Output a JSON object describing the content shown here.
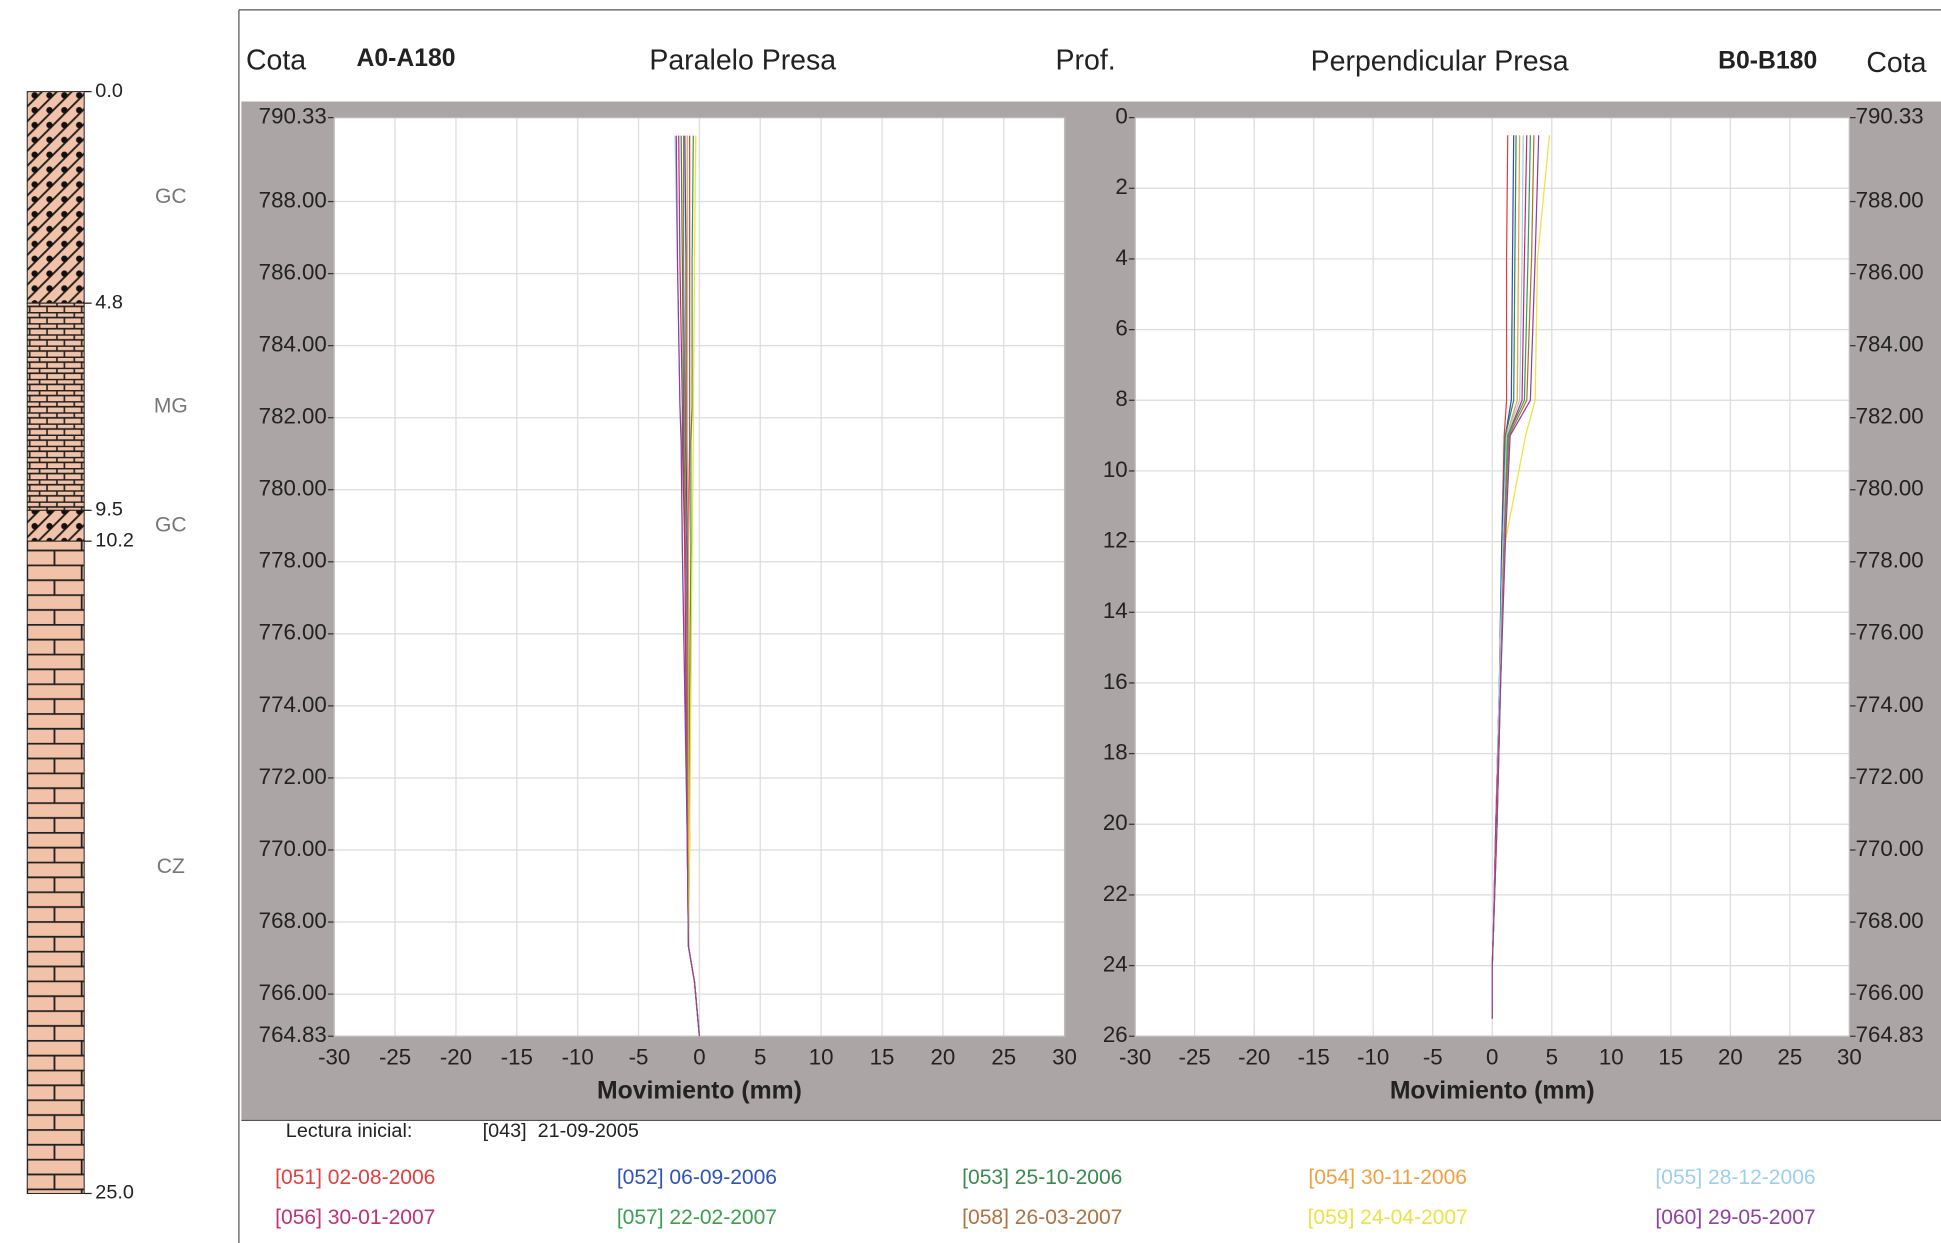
{
  "strata": {
    "depth_labels": [
      {
        "value": 0,
        "label": "0.0"
      },
      4.8,
      9.5,
      10.2,
      {
        "value": 25,
        "label": "25.0"
      }
    ],
    "codes": [
      "GC",
      "MG",
      "GC",
      "CZ"
    ]
  },
  "legend": {
    "initial_label": "Lectura inicial:",
    "initial_reading": "[043]  21-09-2005"
  },
  "chart_data": [
    {
      "type": "line",
      "title": "Paralelo Presa",
      "label": "A0-A180",
      "ylabel": "Cota",
      "xlabel": "Movimiento (mm)",
      "grid": true,
      "xlim": [
        -30,
        30
      ],
      "xticks": [
        -30,
        -25,
        -20,
        -15,
        -10,
        -5,
        0,
        5,
        10,
        15,
        20,
        25,
        30
      ],
      "ylim": [
        790.33,
        764.83
      ],
      "yticks": [
        790.33,
        {
          "value": 788,
          "label": "788.00"
        },
        {
          "value": 786,
          "label": "786.00"
        },
        {
          "value": 784,
          "label": "784.00"
        },
        {
          "value": 782,
          "label": "782.00"
        },
        {
          "value": 780,
          "label": "780.00"
        },
        {
          "value": 778,
          "label": "778.00"
        },
        {
          "value": 776,
          "label": "776.00"
        },
        {
          "value": 774,
          "label": "774.00"
        },
        {
          "value": 772,
          "label": "772.00"
        },
        {
          "value": 770,
          "label": "770.00"
        },
        {
          "value": 768,
          "label": "768.00"
        },
        {
          "value": 766,
          "label": "766.00"
        },
        764.83
      ],
      "y": [
        789.83,
        786.33,
        782.33,
        781.33,
        778.33,
        774.33,
        770.33,
        767.33,
        766.33,
        764.83
      ],
      "series": [
        {
          "name": "[051] 02-08-2006",
          "color": "#e0403f",
          "values": [
            -0.8,
            -0.8,
            -0.8,
            -0.8,
            -0.9,
            -0.9,
            -0.9,
            -0.9,
            -0.4,
            0
          ]
        },
        {
          "name": "[052] 06-09-2006",
          "color": "#2d55b5",
          "values": [
            -1.2,
            -1.1,
            -1.1,
            -1.1,
            -1.0,
            -1.0,
            -0.9,
            -0.9,
            -0.4,
            0
          ]
        },
        {
          "name": "[053] 25-10-2006",
          "color": "#3a8a4f",
          "values": [
            -1.5,
            -1.4,
            -1.3,
            -1.3,
            -1.2,
            -1.1,
            -1.0,
            -0.9,
            -0.4,
            0
          ]
        },
        {
          "name": "[054] 30-11-2006",
          "color": "#f0a040",
          "values": [
            -1.0,
            -1.0,
            -1.0,
            -1.0,
            -0.9,
            -0.9,
            -0.9,
            -0.9,
            -0.4,
            0
          ]
        },
        {
          "name": "[055] 28-12-2006",
          "color": "#9ccfee",
          "values": [
            -2.0,
            -1.8,
            -1.6,
            -1.5,
            -1.4,
            -1.2,
            -1.0,
            -0.9,
            -0.4,
            0
          ]
        },
        {
          "name": "[056] 30-01-2007",
          "color": "#c0307a",
          "values": [
            -1.7,
            -1.6,
            -1.4,
            -1.4,
            -1.2,
            -1.1,
            -1.0,
            -0.9,
            -0.4,
            0
          ]
        },
        {
          "name": "[057] 22-02-2007",
          "color": "#3aa050",
          "values": [
            -0.5,
            -0.6,
            -0.6,
            -0.7,
            -0.7,
            -0.8,
            -0.8,
            -0.9,
            -0.4,
            0
          ]
        },
        {
          "name": "[058] 26-03-2007",
          "color": "#b07040",
          "values": [
            -1.3,
            -1.3,
            -1.2,
            -1.2,
            -1.1,
            -1.0,
            -1.0,
            -0.9,
            -0.4,
            0
          ]
        },
        {
          "name": "[059] 24-04-2007",
          "color": "#f0e040",
          "values": [
            -0.3,
            -0.4,
            -0.5,
            -0.5,
            -0.6,
            -0.7,
            -0.8,
            -0.9,
            -0.4,
            0
          ]
        },
        {
          "name": "[060] 29-05-2007",
          "color": "#9040a0",
          "values": [
            -1.9,
            -1.8,
            -1.6,
            -1.5,
            -1.4,
            -1.2,
            -1.0,
            -0.9,
            -0.4,
            0
          ]
        }
      ]
    },
    {
      "type": "line",
      "title": "Perpendicular Presa",
      "label": "B0-B180",
      "ylabel": "Prof.",
      "y2label": "Cota",
      "xlabel": "Movimiento (mm)",
      "grid": true,
      "xlim": [
        -30,
        30
      ],
      "xticks": [
        -30,
        -25,
        -20,
        -15,
        -10,
        -5,
        0,
        5,
        10,
        15,
        20,
        25,
        30
      ],
      "ylim": [
        0,
        26
      ],
      "yticks": [
        0,
        2,
        4,
        6,
        8,
        10,
        12,
        14,
        16,
        18,
        20,
        22,
        24,
        26
      ],
      "y2lim": [
        790.33,
        764.83
      ],
      "y2ticks": [
        790.33,
        {
          "value": 788,
          "label": "788.00"
        },
        {
          "value": 786,
          "label": "786.00"
        },
        {
          "value": 784,
          "label": "784.00"
        },
        {
          "value": 782,
          "label": "782.00"
        },
        {
          "value": 780,
          "label": "780.00"
        },
        {
          "value": 778,
          "label": "778.00"
        },
        {
          "value": 776,
          "label": "776.00"
        },
        {
          "value": 774,
          "label": "774.00"
        },
        {
          "value": 772,
          "label": "772.00"
        },
        {
          "value": 770,
          "label": "770.00"
        },
        {
          "value": 768,
          "label": "768.00"
        },
        {
          "value": 766,
          "label": "766.00"
        },
        764.83
      ],
      "y": [
        0.5,
        4,
        8,
        9,
        12,
        16,
        20,
        23,
        24,
        25.5
      ],
      "series": [
        {
          "name": "[051] 02-08-2006",
          "color": "#e0403f",
          "values": [
            1.3,
            1.2,
            1.2,
            1.0,
            0.8,
            0.6,
            0.3,
            0.1,
            0,
            0
          ]
        },
        {
          "name": "[052] 06-09-2006",
          "color": "#2d55b5",
          "values": [
            1.8,
            1.7,
            1.6,
            1.1,
            0.8,
            0.6,
            0.3,
            0.1,
            0,
            0
          ]
        },
        {
          "name": "[053] 25-10-2006",
          "color": "#3a8a4f",
          "values": [
            2.0,
            1.9,
            1.8,
            1.1,
            0.9,
            0.6,
            0.3,
            0.1,
            0,
            0
          ]
        },
        {
          "name": "[054] 30-11-2006",
          "color": "#f0a040",
          "values": [
            2.3,
            2.2,
            2.1,
            1.2,
            0.9,
            0.6,
            0.3,
            0.1,
            0,
            0
          ]
        },
        {
          "name": "[055] 28-12-2006",
          "color": "#9ccfee",
          "values": [
            2.6,
            2.5,
            2.3,
            1.2,
            0.9,
            0.6,
            0.3,
            0.1,
            0,
            0
          ]
        },
        {
          "name": "[056] 30-01-2007",
          "color": "#c0307a",
          "values": [
            2.9,
            2.7,
            2.5,
            1.3,
            1.0,
            0.7,
            0.3,
            0.1,
            0,
            0
          ]
        },
        {
          "name": "[057] 22-02-2007",
          "color": "#3aa050",
          "values": [
            3.2,
            3.0,
            2.7,
            1.3,
            1.0,
            0.7,
            0.4,
            0.1,
            0,
            0
          ]
        },
        {
          "name": "[058] 26-03-2007",
          "color": "#b07040",
          "values": [
            3.5,
            3.3,
            2.9,
            1.4,
            1.0,
            0.7,
            0.4,
            0.1,
            0,
            0
          ]
        },
        {
          "name": "[059] 24-04-2007",
          "color": "#f0e040",
          "values": [
            4.8,
            3.8,
            3.6,
            2.8,
            1.1,
            0.7,
            0.4,
            0.1,
            0,
            0
          ]
        },
        {
          "name": "[060] 29-05-2007",
          "color": "#9040a0",
          "values": [
            3.9,
            3.6,
            3.2,
            1.5,
            1.1,
            0.7,
            0.4,
            0.1,
            0,
            0
          ]
        }
      ]
    }
  ]
}
